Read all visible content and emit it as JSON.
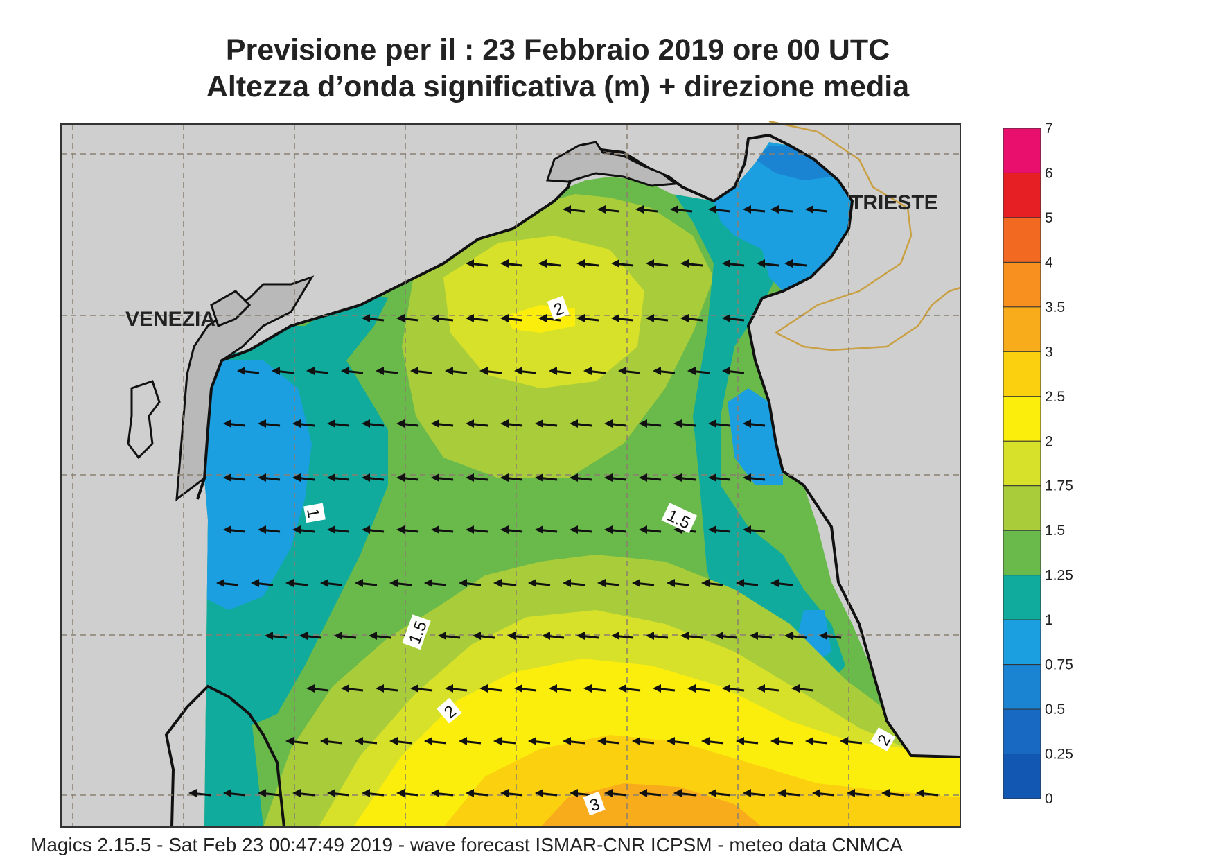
{
  "title": {
    "line1": "Previsione per il  :  23  Febbraio 2019   ore 00 UTC",
    "line2": "Altezza d’onda significativa (m) + direzione media"
  },
  "cities": [
    {
      "name": "VENEZIA"
    },
    {
      "name": "TRIESTE"
    }
  ],
  "contour_labels": [
    "2",
    "1",
    "1.5",
    "1.5",
    "2",
    "2",
    "3"
  ],
  "legend": {
    "levels": [
      "7",
      "6",
      "5",
      "4",
      "3.5",
      "3",
      "2.5",
      "2",
      "1.75",
      "1.5",
      "1.25",
      "1",
      "0.75",
      "0.5",
      "0.25",
      "0"
    ],
    "colors": [
      "#e8106c",
      "#e61f25",
      "#f26a21",
      "#f7901e",
      "#f9ac1b",
      "#fbd10f",
      "#fcee0c",
      "#d7e12a",
      "#a9cd3a",
      "#6ab94b",
      "#10ab9d",
      "#1b9fe0",
      "#1a84d3",
      "#1769c1",
      "#1258b3"
    ]
  },
  "footer": "Magics 2.15.5 - Sat Feb 23 00:47:49 2019 - wave forecast  ISMAR-CNR  ICPSM - meteo data   CNMCA",
  "colors": {
    "land": "#cfcfcf",
    "coast": "#111111",
    "border": "#c9a044",
    "grid": "#8a7f70"
  }
}
